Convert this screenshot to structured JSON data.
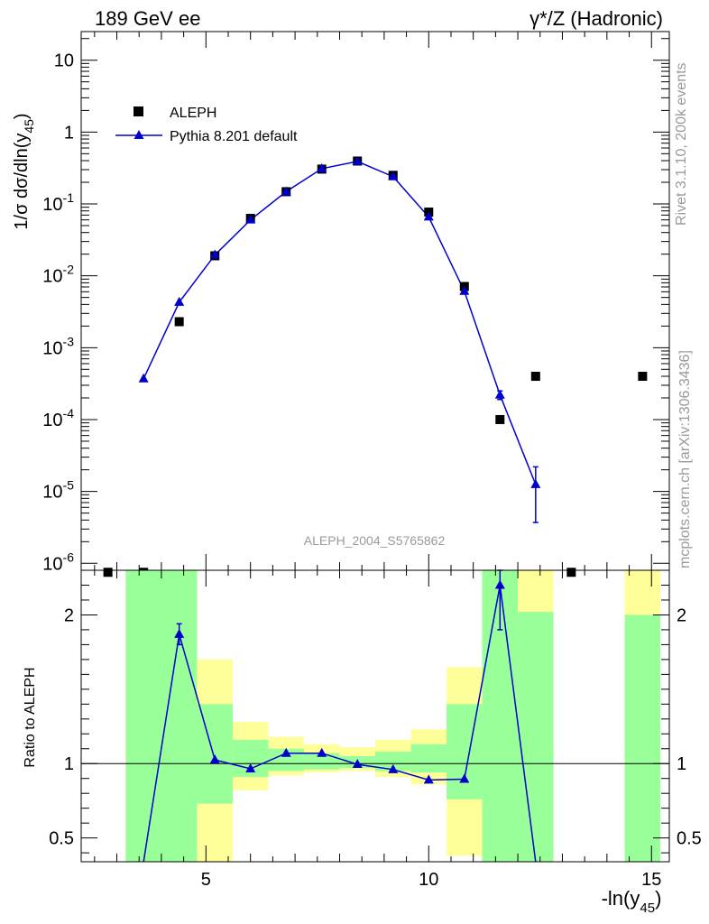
{
  "header": {
    "left": "189 GeV ee",
    "right": "γ*/Z (Hadronic)"
  },
  "side_text": {
    "rivet": "Rivet 3.1.10,  200k events",
    "mcplots": "mcplots.cern.ch [arXiv:1306.3436]"
  },
  "analysis_label": "ALEPH_2004_S5765862",
  "chart_data": [
    {
      "type": "scatter",
      "panel": "main",
      "ylabel": "1/σ  dσ/dln(y45)",
      "yscale": "log",
      "xlim": [
        2.2,
        15.4
      ],
      "ylim": [
        8e-07,
        25
      ],
      "y_ticks": [
        {
          "v": 10,
          "label": "10"
        },
        {
          "v": 1,
          "label": "1"
        },
        {
          "v": 0.1,
          "label": "10^-1"
        },
        {
          "v": 0.01,
          "label": "10^-2"
        },
        {
          "v": 0.001,
          "label": "10^-3"
        },
        {
          "v": 0.0001,
          "label": "10^-4"
        },
        {
          "v": 1e-05,
          "label": "10^-5"
        },
        {
          "v": 1e-06,
          "label": "10^-6"
        }
      ],
      "legend": {
        "placement": "top-left",
        "entries": [
          "ALEPH",
          "Pythia 8.201 default"
        ]
      },
      "series": [
        {
          "name": "ALEPH",
          "marker": "square",
          "color": "#000000",
          "x": [
            2.8,
            3.6,
            4.4,
            5.2,
            6.0,
            6.8,
            7.6,
            8.4,
            9.2,
            10.0,
            10.8,
            11.6,
            12.4,
            13.2,
            14.8
          ],
          "y": [
            7.5e-07,
            7.5e-07,
            0.0023,
            0.019,
            0.063,
            0.148,
            0.305,
            0.395,
            0.25,
            0.077,
            0.0071,
            0.0001,
            0.0004,
            7.5e-07,
            0.0004
          ]
        },
        {
          "name": "Pythia 8.201 default",
          "marker": "triangle",
          "color": "#0000cc",
          "x": [
            3.6,
            4.4,
            5.2,
            6.0,
            6.8,
            7.6,
            8.4,
            9.2,
            10.0,
            10.8,
            11.6,
            12.4
          ],
          "y": [
            0.00037,
            0.0043,
            0.0195,
            0.06,
            0.148,
            0.31,
            0.39,
            0.24,
            0.066,
            0.0061,
            0.00022,
            1.25e-05
          ],
          "yerr_low": [
            0,
            0,
            0,
            0,
            0,
            0,
            0,
            0,
            0,
            0,
            3e-05,
            8.8e-06
          ],
          "yerr_high": [
            0,
            0,
            0,
            0,
            0,
            0,
            0,
            0,
            0,
            0,
            3e-05,
            9.5e-06
          ]
        }
      ]
    },
    {
      "type": "line",
      "panel": "ratio",
      "ylabel": "Ratio to ALEPH",
      "xlabel": "-ln(y45)",
      "xlim": [
        2.2,
        15.4
      ],
      "ylim": [
        0.34,
        2.3
      ],
      "x_tick_labels": [
        5,
        10,
        15
      ],
      "y_tick_labels": [
        {
          "v": 0.5,
          "label": "0.5"
        },
        {
          "v": 1,
          "label": "1"
        },
        {
          "v": 2,
          "label": "2"
        }
      ],
      "bands": [
        {
          "x0": 3.2,
          "x1": 4.8,
          "y_lo": 0.34,
          "y_hi": 2.3,
          "green_lo": 0.34,
          "green_hi": 2.3
        },
        {
          "x0": 4.8,
          "x1": 5.6,
          "y_lo": 0.34,
          "y_hi": 1.7,
          "green_lo": 0.73,
          "green_hi": 1.4
        },
        {
          "x0": 5.6,
          "x1": 6.4,
          "y_lo": 0.82,
          "y_hi": 1.28,
          "green_lo": 0.91,
          "green_hi": 1.16
        },
        {
          "x0": 6.4,
          "x1": 7.2,
          "y_lo": 0.92,
          "y_hi": 1.18,
          "green_lo": 0.95,
          "green_hi": 1.1
        },
        {
          "x0": 7.2,
          "x1": 8.0,
          "y_lo": 0.94,
          "y_hi": 1.13,
          "green_lo": 0.96,
          "green_hi": 1.07
        },
        {
          "x0": 8.0,
          "x1": 8.8,
          "y_lo": 0.95,
          "y_hi": 1.11,
          "green_lo": 0.97,
          "green_hi": 1.05
        },
        {
          "x0": 8.8,
          "x1": 9.6,
          "y_lo": 0.91,
          "y_hi": 1.16,
          "green_lo": 0.95,
          "green_hi": 1.08
        },
        {
          "x0": 9.6,
          "x1": 10.4,
          "y_lo": 0.86,
          "y_hi": 1.23,
          "green_lo": 0.94,
          "green_hi": 1.13
        },
        {
          "x0": 10.4,
          "x1": 11.2,
          "y_lo": 0.38,
          "y_hi": 1.65,
          "green_lo": 0.76,
          "green_hi": 1.4
        },
        {
          "x0": 11.2,
          "x1": 12.0,
          "y_lo": 0.34,
          "y_hi": 2.3,
          "green_lo": 0.34,
          "green_hi": 2.3
        },
        {
          "x0": 12.0,
          "x1": 12.8,
          "y_lo": 0.34,
          "y_hi": 2.3,
          "green_lo": 0.34,
          "green_hi": 2.02
        },
        {
          "x0": 14.4,
          "x1": 15.2,
          "y_lo": 0.34,
          "y_hi": 2.3,
          "green_lo": 0.34,
          "green_hi": 2.0
        }
      ],
      "series": [
        {
          "name": "Pythia 8.201 default",
          "color": "#0000cc",
          "x": [
            3.6,
            4.4,
            5.2,
            6.0,
            6.8,
            7.6,
            8.4,
            9.2,
            10.0,
            10.8,
            11.6,
            12.4
          ],
          "y": [
            0.16,
            1.87,
            1.025,
            0.965,
            1.07,
            1.07,
            0.995,
            0.96,
            0.89,
            0.895,
            2.2,
            0.031
          ],
          "yerr_low": [
            0,
            0.07,
            0,
            0,
            0,
            0,
            0,
            0,
            0,
            0,
            0.3,
            0
          ],
          "yerr_high": [
            0,
            0.07,
            0,
            0,
            0,
            0,
            0,
            0,
            0,
            0,
            0.3,
            0
          ],
          "marker_shown": [
            false,
            true,
            true,
            true,
            true,
            true,
            true,
            true,
            true,
            true,
            true,
            false
          ]
        }
      ]
    }
  ]
}
